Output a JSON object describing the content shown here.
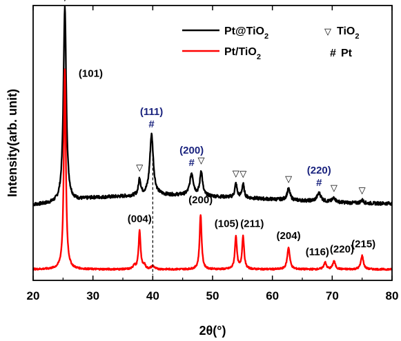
{
  "chart_data": {
    "type": "line",
    "xlabel": "2θ(°)",
    "ylabel": "Intensity(arb. unit)",
    "xlim": [
      20,
      80
    ],
    "xticks": [
      20,
      30,
      40,
      50,
      60,
      70,
      80
    ],
    "yticks_shown": false,
    "legend": {
      "placement": "top-right",
      "series_entries": [
        {
          "text": "Pt@TiO",
          "sub": "2",
          "color": "#000000"
        },
        {
          "text": "Pt/TiO",
          "sub": "2",
          "color": "#ff0000"
        }
      ],
      "marker_entries": [
        {
          "symbol": "▽",
          "text": "TiO",
          "sub": "2",
          "color": "#000000"
        },
        {
          "symbol": "#",
          "text": "Pt",
          "sub": "",
          "color": "#1a237e"
        }
      ]
    },
    "series": [
      {
        "name": "Pt@TiO2",
        "color": "#000000",
        "baseline": [
          [
            20,
            0.275
          ],
          [
            24,
            0.28
          ],
          [
            26,
            0.285
          ],
          [
            30,
            0.3
          ],
          [
            35,
            0.305
          ],
          [
            40,
            0.31
          ],
          [
            45,
            0.31
          ],
          [
            50,
            0.305
          ],
          [
            55,
            0.3
          ],
          [
            60,
            0.295
          ],
          [
            65,
            0.29
          ],
          [
            70,
            0.285
          ],
          [
            75,
            0.28
          ],
          [
            80,
            0.28
          ]
        ],
        "peaks": [
          {
            "x": 25.3,
            "height": 0.71,
            "width": 0.28
          },
          {
            "x": 37.8,
            "height": 0.06,
            "width": 0.22
          },
          {
            "x": 39.8,
            "height": 0.22,
            "width": 0.35
          },
          {
            "x": 46.5,
            "height": 0.08,
            "width": 0.35
          },
          {
            "x": 48.1,
            "height": 0.09,
            "width": 0.25
          },
          {
            "x": 53.9,
            "height": 0.05,
            "width": 0.22
          },
          {
            "x": 55.1,
            "height": 0.05,
            "width": 0.22
          },
          {
            "x": 62.7,
            "height": 0.04,
            "width": 0.3
          },
          {
            "x": 67.8,
            "height": 0.03,
            "width": 0.4
          },
          {
            "x": 70.3,
            "height": 0.015,
            "width": 0.3
          },
          {
            "x": 75.0,
            "height": 0.012,
            "width": 0.3
          }
        ]
      },
      {
        "name": "Pt/TiO2",
        "color": "#ff0000",
        "baseline": [
          [
            20,
            0.04
          ],
          [
            80,
            0.04
          ]
        ],
        "peaks": [
          {
            "x": 25.3,
            "height": 0.73,
            "width": 0.2
          },
          {
            "x": 36.9,
            "height": 0.015,
            "width": 0.2
          },
          {
            "x": 37.8,
            "height": 0.14,
            "width": 0.2
          },
          {
            "x": 38.6,
            "height": 0.015,
            "width": 0.2
          },
          {
            "x": 40.0,
            "height": 0.012,
            "width": 0.3
          },
          {
            "x": 48.0,
            "height": 0.2,
            "width": 0.2
          },
          {
            "x": 53.9,
            "height": 0.12,
            "width": 0.2
          },
          {
            "x": 55.1,
            "height": 0.12,
            "width": 0.2
          },
          {
            "x": 62.7,
            "height": 0.08,
            "width": 0.25
          },
          {
            "x": 68.8,
            "height": 0.025,
            "width": 0.25
          },
          {
            "x": 70.3,
            "height": 0.03,
            "width": 0.25
          },
          {
            "x": 75.0,
            "height": 0.05,
            "width": 0.25
          }
        ]
      }
    ],
    "annotations": {
      "anatase_markers": [
        25.3,
        37.8,
        48.1,
        53.9,
        55.1,
        62.7,
        70.3,
        75.0
      ],
      "pt_markers": [
        {
          "x": 39.8,
          "label": "(111)"
        },
        {
          "x": 46.5,
          "label": "(200)"
        },
        {
          "x": 67.8,
          "label": "(220)"
        }
      ],
      "hkl_labels": [
        {
          "x": 25.3,
          "label": "(101)"
        },
        {
          "x": 37.8,
          "label": "(004)"
        },
        {
          "x": 48.0,
          "label": "(200)"
        },
        {
          "x": 53.9,
          "label": "(105)"
        },
        {
          "x": 55.1,
          "label": "(211)"
        },
        {
          "x": 62.7,
          "label": "(204)"
        },
        {
          "x": 68.8,
          "label": "(116)"
        },
        {
          "x": 70.3,
          "label": "(220)"
        },
        {
          "x": 75.0,
          "label": "(215)"
        }
      ],
      "dashed_reference_x": 40.0
    }
  }
}
